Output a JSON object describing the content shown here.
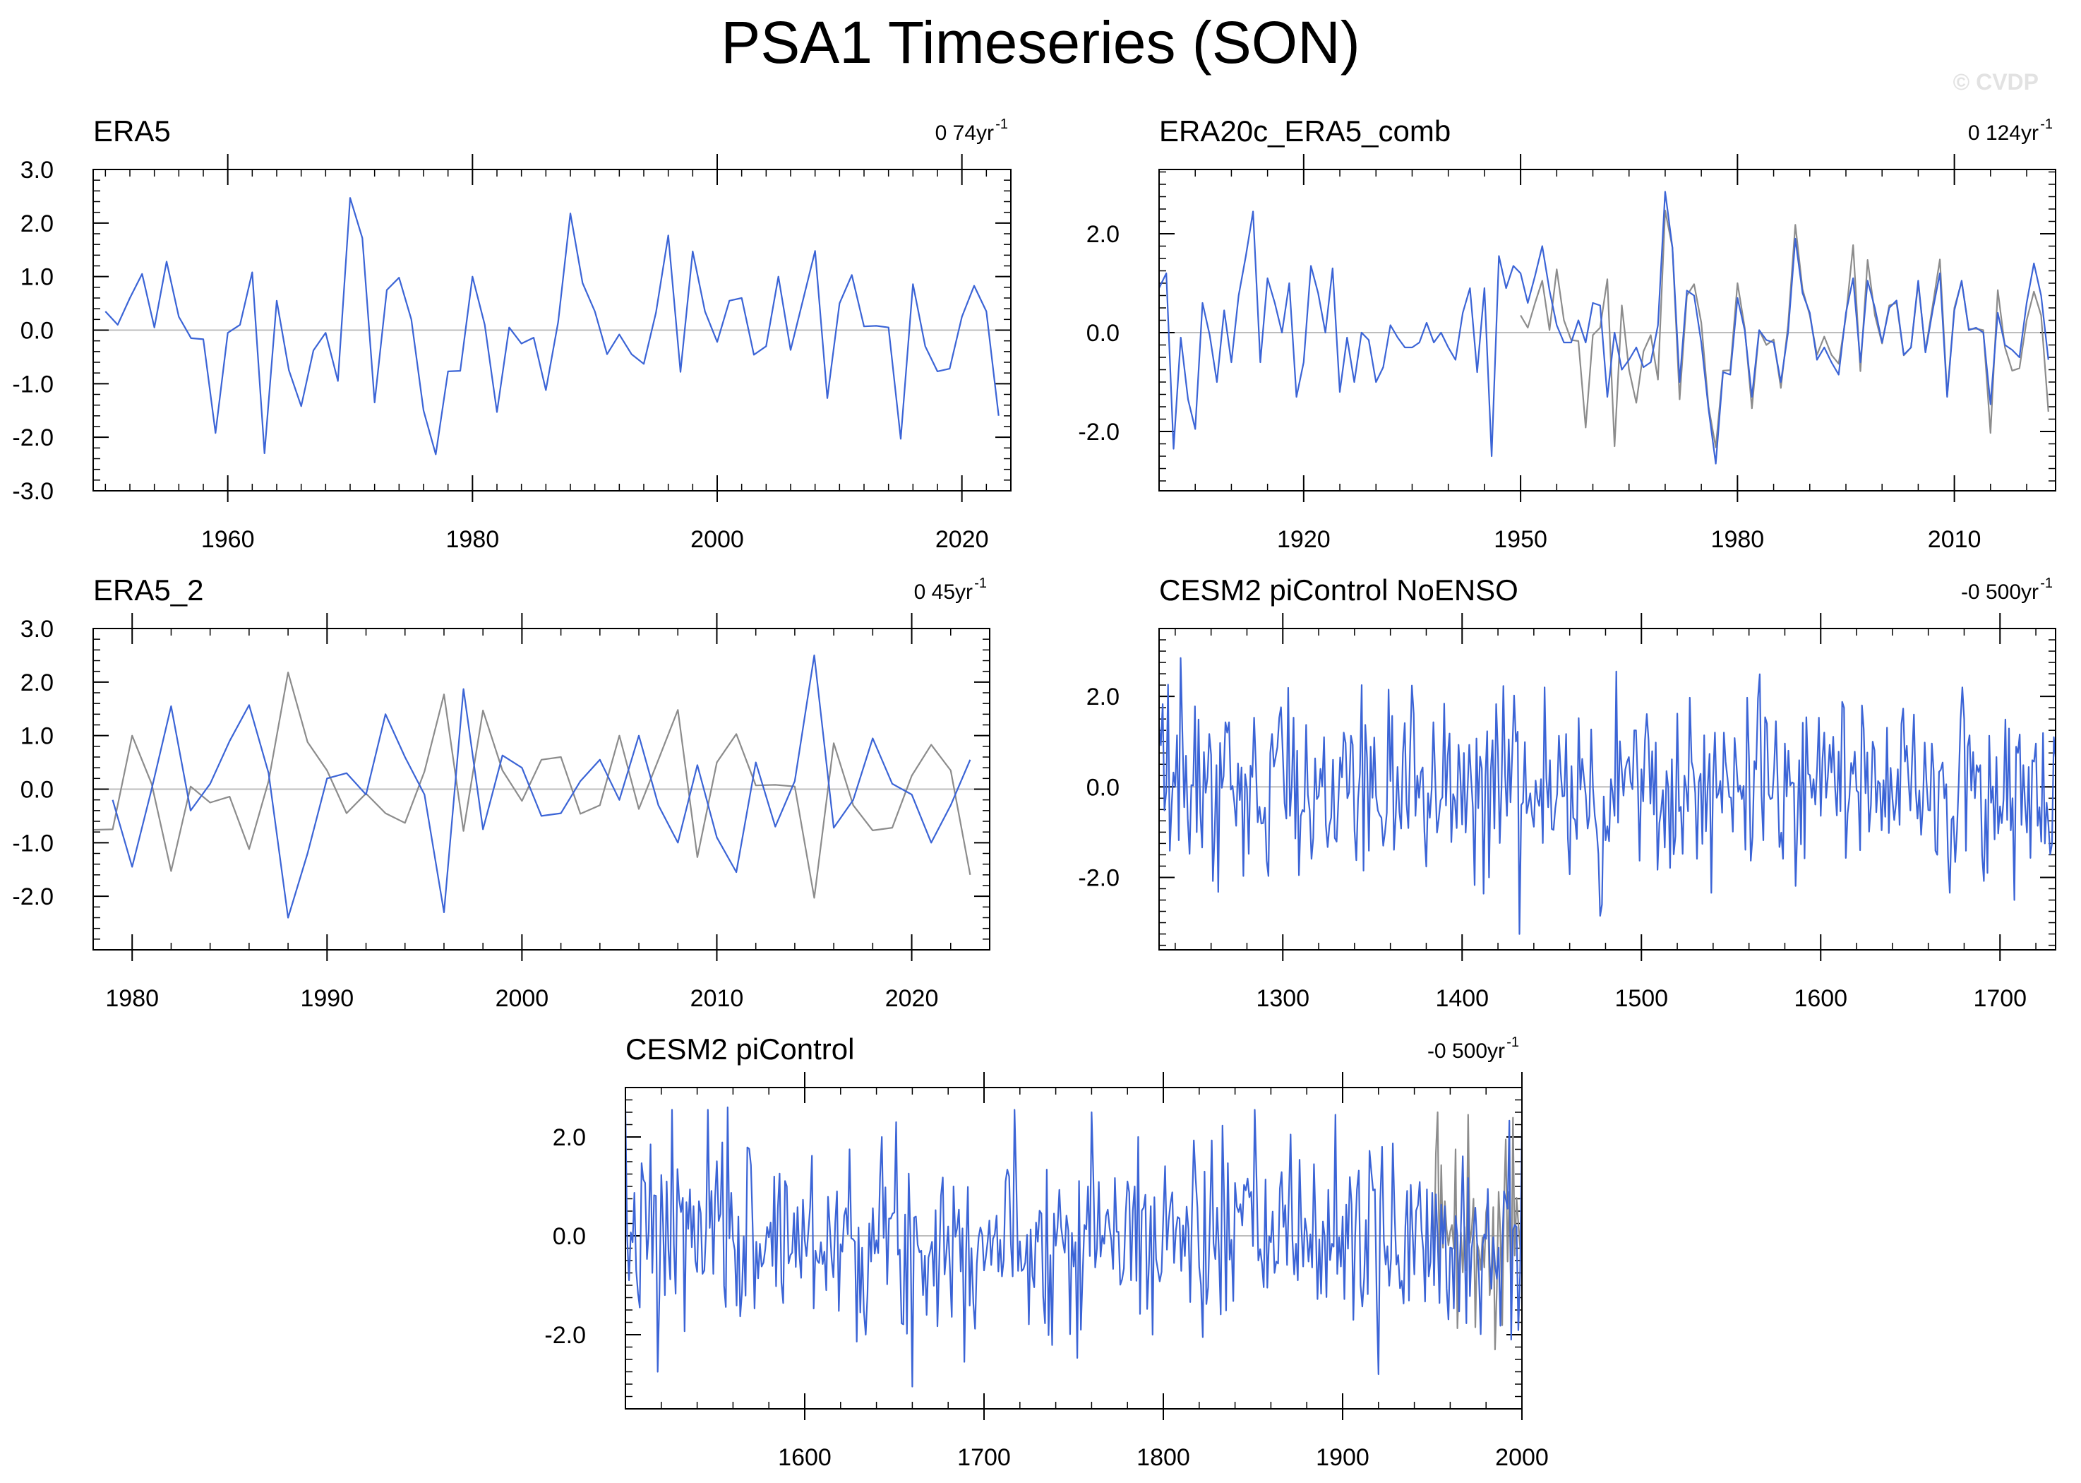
{
  "figure": {
    "title": "PSA1 Timeseries (SON)",
    "watermark": "© CVDP"
  },
  "colors": {
    "primary": "#3b64d6",
    "reference": "#8c8c8c",
    "zero_line": "#bdbdbd",
    "axis": "#000000"
  },
  "chart_data": [
    {
      "type": "line",
      "title": "ERA5",
      "trend": "0 74yr",
      "trend_exp": "-1",
      "xlim": [
        1949,
        2024
      ],
      "ylim": [
        -3.0,
        3.0
      ],
      "xticks": [
        1960,
        1980,
        2000,
        2020
      ],
      "yticks": [
        -3.0,
        -2.0,
        -1.0,
        0.0,
        1.0,
        2.0,
        3.0
      ],
      "ytick_labels": [
        "-3.0",
        "-2.0",
        "-1.0",
        "0.0",
        "1.0",
        "2.0",
        "3.0"
      ],
      "series": [
        {
          "name": "ERA5",
          "role": "primary",
          "x_start": 1950,
          "values": [
            0.35,
            0.1,
            0.6,
            1.05,
            0.05,
            1.28,
            0.25,
            -0.15,
            -0.17,
            -1.92,
            -0.05,
            0.1,
            1.08,
            -2.3,
            0.55,
            -0.75,
            -1.42,
            -0.38,
            -0.05,
            -0.95,
            2.47,
            1.72,
            -1.35,
            0.75,
            0.98,
            0.2,
            -1.5,
            -2.32,
            -0.77,
            -0.76,
            1.0,
            0.1,
            -1.53,
            0.05,
            -0.25,
            -0.14,
            -1.12,
            0.15,
            2.18,
            0.88,
            0.35,
            -0.45,
            -0.08,
            -0.45,
            -0.63,
            0.33,
            1.77,
            -0.78,
            1.47,
            0.35,
            -0.22,
            0.55,
            0.6,
            -0.46,
            -0.3,
            1.0,
            -0.37,
            0.55,
            1.48,
            -1.27,
            0.5,
            1.03,
            0.07,
            0.08,
            0.05,
            -2.03,
            0.86,
            -0.3,
            -0.77,
            -0.72,
            0.25,
            0.83,
            0.35,
            -1.6
          ]
        }
      ]
    },
    {
      "type": "line",
      "title": "ERA20c_ERA5_comb",
      "trend": "0 124yr",
      "trend_exp": "-1",
      "xlim": [
        1900,
        2024
      ],
      "ylim": [
        -3.2,
        3.3
      ],
      "xticks": [
        1920,
        1950,
        1980,
        2010
      ],
      "yticks": [
        -2.0,
        0.0,
        2.0
      ],
      "ytick_labels": [
        "-2.0",
        "0.0",
        "2.0"
      ],
      "series": [
        {
          "name": "ERA5 reference",
          "role": "reference",
          "x_start": 1950,
          "values": [
            0.35,
            0.1,
            0.6,
            1.05,
            0.05,
            1.28,
            0.25,
            -0.15,
            -0.17,
            -1.92,
            -0.05,
            0.1,
            1.08,
            -2.3,
            0.55,
            -0.75,
            -1.42,
            -0.38,
            -0.05,
            -0.95,
            2.47,
            1.72,
            -1.35,
            0.75,
            0.98,
            0.2,
            -1.5,
            -2.32,
            -0.77,
            -0.76,
            1.0,
            0.1,
            -1.53,
            0.05,
            -0.25,
            -0.14,
            -1.12,
            0.15,
            2.18,
            0.88,
            0.35,
            -0.45,
            -0.08,
            -0.45,
            -0.63,
            0.33,
            1.77,
            -0.78,
            1.47,
            0.35,
            -0.22,
            0.55,
            0.6,
            -0.46,
            -0.3,
            1.0,
            -0.37,
            0.55,
            1.48,
            -1.27,
            0.5,
            1.03,
            0.07,
            0.08,
            0.05,
            -2.03,
            0.86,
            -0.3,
            -0.77,
            -0.72,
            0.25,
            0.83,
            0.35,
            -1.6
          ]
        },
        {
          "name": "ERA20c_ERA5_comb",
          "role": "primary",
          "x_start": 1900,
          "values": [
            0.9,
            1.2,
            -2.35,
            -0.1,
            -1.35,
            -1.95,
            0.6,
            -0.05,
            -1.0,
            0.45,
            -0.6,
            0.75,
            1.55,
            2.45,
            -0.6,
            1.1,
            0.6,
            0.0,
            1.0,
            -1.3,
            -0.6,
            1.35,
            0.8,
            0.0,
            1.3,
            -1.2,
            -0.1,
            -1.0,
            0.0,
            -0.15,
            -1.0,
            -0.7,
            0.15,
            -0.1,
            -0.3,
            -0.3,
            -0.2,
            0.2,
            -0.2,
            0.0,
            -0.3,
            -0.55,
            0.4,
            0.9,
            -0.8,
            0.9,
            -2.5,
            1.55,
            0.9,
            1.35,
            1.2,
            0.6,
            1.15,
            1.75,
            0.85,
            0.15,
            -0.2,
            -0.2,
            0.25,
            -0.2,
            0.6,
            0.55,
            -1.3,
            0.0,
            -0.75,
            -0.55,
            -0.3,
            -0.7,
            -0.6,
            0.15,
            2.85,
            1.72,
            -1.0,
            0.85,
            0.75,
            -0.2,
            -1.55,
            -2.65,
            -0.8,
            -0.85,
            0.7,
            0.05,
            -1.3,
            0.05,
            -0.15,
            -0.2,
            -1.0,
            0.0,
            1.9,
            0.8,
            0.4,
            -0.55,
            -0.3,
            -0.6,
            -0.85,
            0.4,
            1.1,
            -0.6,
            1.05,
            0.5,
            -0.2,
            0.5,
            0.65,
            -0.45,
            -0.3,
            1.05,
            -0.4,
            0.45,
            1.2,
            -1.3,
            0.45,
            1.05,
            0.05,
            0.1,
            0.0,
            -1.45,
            0.4,
            -0.25,
            -0.35,
            -0.5,
            0.6,
            1.4,
            0.75,
            -0.55
          ]
        }
      ]
    },
    {
      "type": "line",
      "title": "ERA5_2",
      "trend": "0 45yr",
      "trend_exp": "-1",
      "xlim": [
        1978,
        2024
      ],
      "ylim": [
        -3.0,
        3.0
      ],
      "xticks": [
        1980,
        1990,
        2000,
        2010,
        2020
      ],
      "yticks": [
        -2.0,
        -1.0,
        0.0,
        1.0,
        2.0,
        3.0
      ],
      "ytick_labels": [
        "-2.0",
        "-1.0",
        "0.0",
        "1.0",
        "2.0",
        "3.0"
      ],
      "series": [
        {
          "name": "reference",
          "role": "reference",
          "x_start": 1978,
          "values": [
            -0.76,
            -0.75,
            1.0,
            0.1,
            -1.53,
            0.05,
            -0.25,
            -0.14,
            -1.12,
            0.15,
            2.18,
            0.88,
            0.35,
            -0.45,
            -0.08,
            -0.45,
            -0.63,
            0.33,
            1.77,
            -0.78,
            1.47,
            0.35,
            -0.22,
            0.55,
            0.6,
            -0.46,
            -0.3,
            1.0,
            -0.37,
            0.55,
            1.48,
            -1.27,
            0.5,
            1.03,
            0.07,
            0.08,
            0.05,
            -2.03,
            0.86,
            -0.3,
            -0.77,
            -0.72,
            0.25,
            0.83,
            0.35,
            -1.6
          ]
        },
        {
          "name": "ERA5_2",
          "role": "primary",
          "x_start": 1979,
          "values": [
            -0.2,
            -1.45,
            0.0,
            1.55,
            -0.4,
            0.1,
            0.9,
            1.57,
            0.3,
            -2.4,
            -1.2,
            0.2,
            0.3,
            -0.1,
            1.4,
            0.6,
            -0.1,
            -2.3,
            1.87,
            -0.75,
            0.63,
            0.4,
            -0.5,
            -0.45,
            0.15,
            0.55,
            -0.2,
            1.0,
            -0.3,
            -1.0,
            0.45,
            -0.9,
            -1.55,
            0.5,
            -0.7,
            0.15,
            2.5,
            -0.72,
            -0.2,
            0.95,
            0.1,
            -0.1,
            -1.0,
            -0.3,
            0.55
          ]
        }
      ]
    },
    {
      "type": "line",
      "title": "CESM2 piControl NoENSO",
      "trend": "-0 500yr",
      "trend_exp": "-1",
      "xlim": [
        1231,
        1731
      ],
      "ylim": [
        -3.6,
        3.5
      ],
      "xticks": [
        1300,
        1400,
        1500,
        1600,
        1700
      ],
      "yticks": [
        -2.0,
        0.0,
        2.0
      ],
      "ytick_labels": [
        "-2.0",
        "0.0",
        "2.0"
      ],
      "series": [
        {
          "name": "CESM2 piControl NoENSO",
          "role": "primary",
          "x_start": 1231,
          "generated": {
            "seed": 12,
            "n": 501,
            "sd": 0.95,
            "clip": 2.6,
            "peaks": [
              [
                1243,
                2.85
              ],
              [
                1432,
                -3.25
              ],
              [
                1486,
                2.55
              ],
              [
                1477,
                -2.85
              ],
              [
                1359,
                2.15
              ],
              [
                1708,
                -2.5
              ]
            ]
          }
        }
      ]
    },
    {
      "type": "line",
      "title": "CESM2 piControl",
      "trend": "-0 500yr",
      "trend_exp": "-1",
      "xlim": [
        1500,
        2000
      ],
      "ylim": [
        -3.5,
        3.0
      ],
      "xticks": [
        1600,
        1700,
        1800,
        1900,
        2000
      ],
      "yticks": [
        -2.0,
        0.0,
        2.0
      ],
      "ytick_labels": [
        "-2.0",
        "0.0",
        "2.0"
      ],
      "series": [
        {
          "name": "reference",
          "role": "reference",
          "x_start": 1950,
          "generated": {
            "seed": 99,
            "n": 51,
            "sd": 1.1,
            "clip": 2.5,
            "peaks": [
              [
                1970,
                2.45
              ],
              [
                1985,
                -2.3
              ]
            ]
          }
        },
        {
          "name": "CESM2 piControl",
          "role": "primary",
          "x_start": 1500,
          "generated": {
            "seed": 7,
            "n": 501,
            "sd": 0.95,
            "clip": 2.55,
            "peaks": [
              [
                1526,
                2.55
              ],
              [
                1557,
                2.6
              ],
              [
                1660,
                -3.05
              ],
              [
                1760,
                2.5
              ],
              [
                1518,
                -2.75
              ],
              [
                1920,
                -2.8
              ],
              [
                2000,
                2.15
              ],
              [
                1994,
                -2.1
              ]
            ]
          }
        }
      ]
    }
  ]
}
